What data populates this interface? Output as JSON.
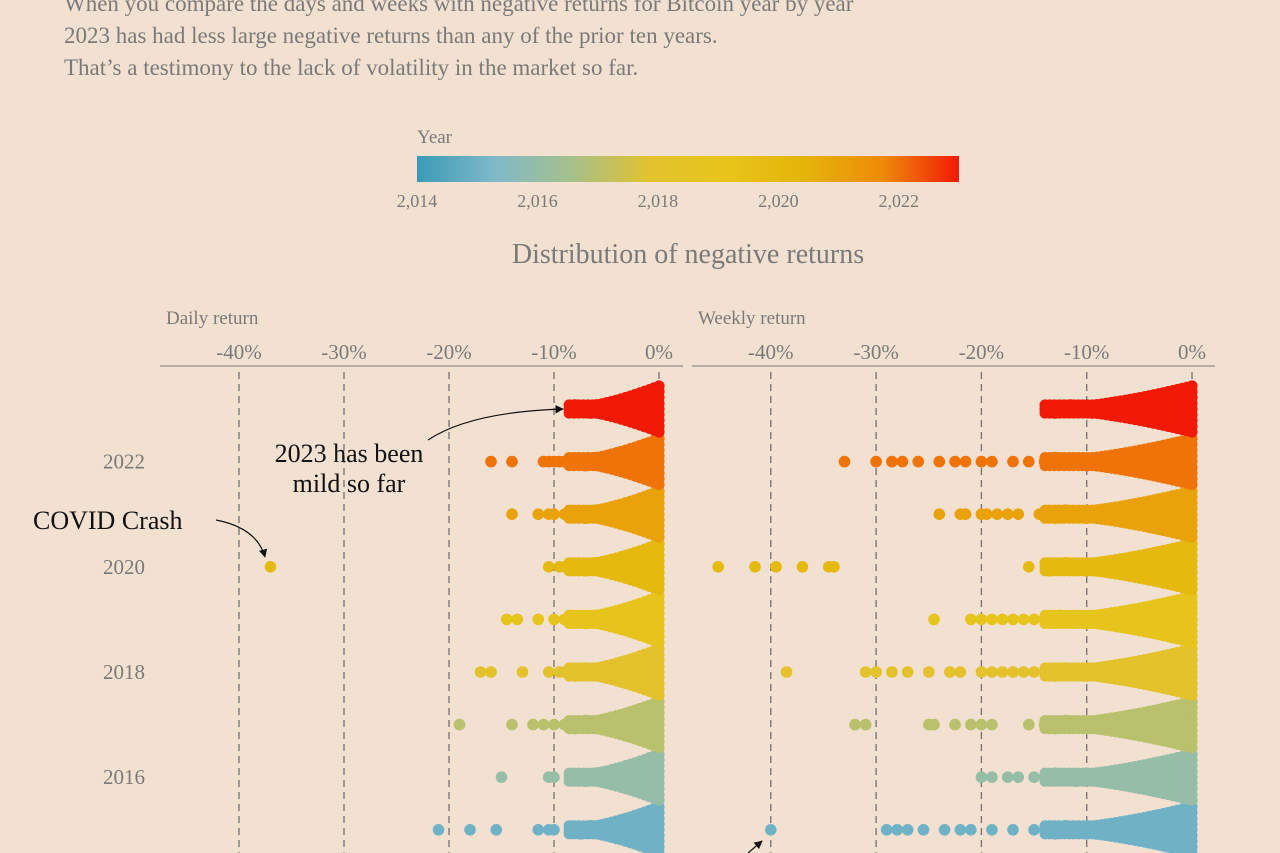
{
  "intro": {
    "lines": [
      "When you compare the days and weeks with negative returns for Bitcoin year by year",
      "2023 has had less large negative returns than any of the prior ten years.",
      "That’s a testimony to the lack of volatility in the market so far."
    ]
  },
  "colors": {
    "background": "#f2e0d0",
    "muted_text": "#7a7a7a",
    "ink": "#111111",
    "gradient": [
      "#3a9ab6",
      "#7fb9c9",
      "#a6c08c",
      "#e2c22e",
      "#e8c41a",
      "#e5b40a",
      "#ee8c08",
      "#f21a05"
    ]
  },
  "chart_data": {
    "type": "scatter",
    "subtype": "beeswarm",
    "title": "Distribution of negative returns",
    "legend": {
      "title": "Year",
      "placement": "top-center",
      "ticks": [
        "2,014",
        "2,016",
        "2,018",
        "2,020",
        "2,022"
      ],
      "range": [
        2014,
        2023
      ]
    },
    "years": [
      2023,
      2022,
      2021,
      2020,
      2019,
      2018,
      2017,
      2016,
      2015
    ],
    "year_labels": [
      "2022",
      "2020",
      "2018",
      "2016"
    ],
    "grid": "dashed vertical",
    "panels": [
      {
        "xlabel": "Daily return",
        "xticks": [
          "-40%",
          "-30%",
          "-20%",
          "-10%",
          "0%"
        ],
        "xlim": [
          -0.475,
          0.0
        ],
        "sampled_points": {
          "2023": [
            -0.08,
            -0.07,
            -0.065,
            -0.06,
            -0.055,
            -0.05,
            -0.045,
            -0.04,
            -0.035,
            -0.03,
            -0.025,
            -0.02,
            -0.015,
            -0.01
          ],
          "2022": [
            -0.16,
            -0.14,
            -0.11,
            -0.105,
            -0.1,
            -0.095,
            -0.09,
            -0.08,
            -0.07,
            -0.06,
            -0.05,
            -0.04,
            -0.03,
            -0.02
          ],
          "2021": [
            -0.14,
            -0.115,
            -0.105,
            -0.1,
            -0.09,
            -0.08,
            -0.07,
            -0.06,
            -0.05,
            -0.04,
            -0.03,
            -0.02
          ],
          "2020": [
            -0.37,
            -0.105,
            -0.095,
            -0.09,
            -0.08,
            -0.07,
            -0.06,
            -0.05,
            -0.04,
            -0.03,
            -0.02
          ],
          "2019": [
            -0.145,
            -0.135,
            -0.115,
            -0.1,
            -0.09,
            -0.085,
            -0.08,
            -0.07,
            -0.06,
            -0.05,
            -0.04,
            -0.03,
            -0.02
          ],
          "2018": [
            -0.17,
            -0.16,
            -0.13,
            -0.105,
            -0.095,
            -0.09,
            -0.085,
            -0.08,
            -0.07,
            -0.06,
            -0.05,
            -0.04,
            -0.03
          ],
          "2017": [
            -0.19,
            -0.14,
            -0.12,
            -0.11,
            -0.1,
            -0.09,
            -0.08,
            -0.07,
            -0.06,
            -0.05,
            -0.04,
            -0.03
          ],
          "2016": [
            -0.15,
            -0.105,
            -0.1,
            -0.08,
            -0.07,
            -0.06,
            -0.05,
            -0.04,
            -0.03,
            -0.02
          ],
          "2015": [
            -0.21,
            -0.18,
            -0.155,
            -0.115,
            -0.105,
            -0.1,
            -0.085,
            -0.075,
            -0.065,
            -0.055,
            -0.045,
            -0.035,
            -0.025
          ]
        }
      },
      {
        "xlabel": "Weekly return",
        "xticks": [
          "-40%",
          "-30%",
          "-20%",
          "-10%",
          "0%"
        ],
        "xlim": [
          -0.475,
          0.0
        ],
        "sampled_points": {
          "2023": [
            -0.13,
            -0.115,
            -0.105,
            -0.095,
            -0.085,
            -0.075,
            -0.065,
            -0.055,
            -0.045,
            -0.035,
            -0.025,
            -0.015
          ],
          "2022": [
            -0.33,
            -0.3,
            -0.285,
            -0.275,
            -0.26,
            -0.24,
            -0.225,
            -0.215,
            -0.2,
            -0.19,
            -0.17,
            -0.155,
            -0.14,
            -0.13,
            -0.12,
            -0.1,
            -0.09,
            -0.08,
            -0.07,
            -0.06,
            -0.05,
            -0.04,
            -0.03,
            -0.02
          ],
          "2021": [
            -0.24,
            -0.22,
            -0.215,
            -0.2,
            -0.195,
            -0.185,
            -0.175,
            -0.165,
            -0.145,
            -0.13,
            -0.12,
            -0.11,
            -0.1,
            -0.09,
            -0.08,
            -0.07,
            -0.06,
            -0.05,
            -0.04,
            -0.03,
            -0.02
          ],
          "2020": [
            -0.45,
            -0.415,
            -0.395,
            -0.37,
            -0.345,
            -0.34,
            -0.155,
            -0.135,
            -0.12,
            -0.11,
            -0.1,
            -0.09,
            -0.08,
            -0.07,
            -0.06,
            -0.05,
            -0.04,
            -0.03,
            -0.02
          ],
          "2019": [
            -0.245,
            -0.21,
            -0.2,
            -0.19,
            -0.18,
            -0.17,
            -0.16,
            -0.15,
            -0.14,
            -0.125,
            -0.11,
            -0.1,
            -0.09,
            -0.08,
            -0.07,
            -0.06,
            -0.05,
            -0.04,
            -0.03,
            -0.02
          ],
          "2018": [
            -0.385,
            -0.31,
            -0.3,
            -0.285,
            -0.27,
            -0.25,
            -0.23,
            -0.22,
            -0.2,
            -0.19,
            -0.18,
            -0.17,
            -0.16,
            -0.15,
            -0.14,
            -0.13,
            -0.12,
            -0.11,
            -0.1,
            -0.09,
            -0.08,
            -0.07,
            -0.06,
            -0.05,
            -0.04,
            -0.03,
            -0.02
          ],
          "2017": [
            -0.32,
            -0.31,
            -0.25,
            -0.245,
            -0.225,
            -0.21,
            -0.2,
            -0.19,
            -0.155,
            -0.14,
            -0.13,
            -0.12,
            -0.11,
            -0.1,
            -0.09,
            -0.08,
            -0.07,
            -0.06,
            -0.05,
            -0.04,
            -0.03,
            -0.02
          ],
          "2016": [
            -0.2,
            -0.19,
            -0.175,
            -0.165,
            -0.15,
            -0.14,
            -0.13,
            -0.12,
            -0.11,
            -0.1,
            -0.085,
            -0.07,
            -0.06,
            -0.05,
            -0.04,
            -0.03,
            -0.02
          ],
          "2015": [
            -0.4,
            -0.29,
            -0.28,
            -0.27,
            -0.255,
            -0.235,
            -0.22,
            -0.21,
            -0.19,
            -0.17,
            -0.15,
            -0.14,
            -0.13,
            -0.12,
            -0.11,
            -0.1,
            -0.09,
            -0.08,
            -0.07,
            -0.06,
            -0.05,
            -0.04,
            -0.03,
            -0.02
          ]
        }
      }
    ],
    "annotations": [
      {
        "text_lines": [
          "2023 has been",
          "mild so far"
        ]
      },
      {
        "text_lines": [
          "COVID Crash"
        ]
      }
    ]
  }
}
